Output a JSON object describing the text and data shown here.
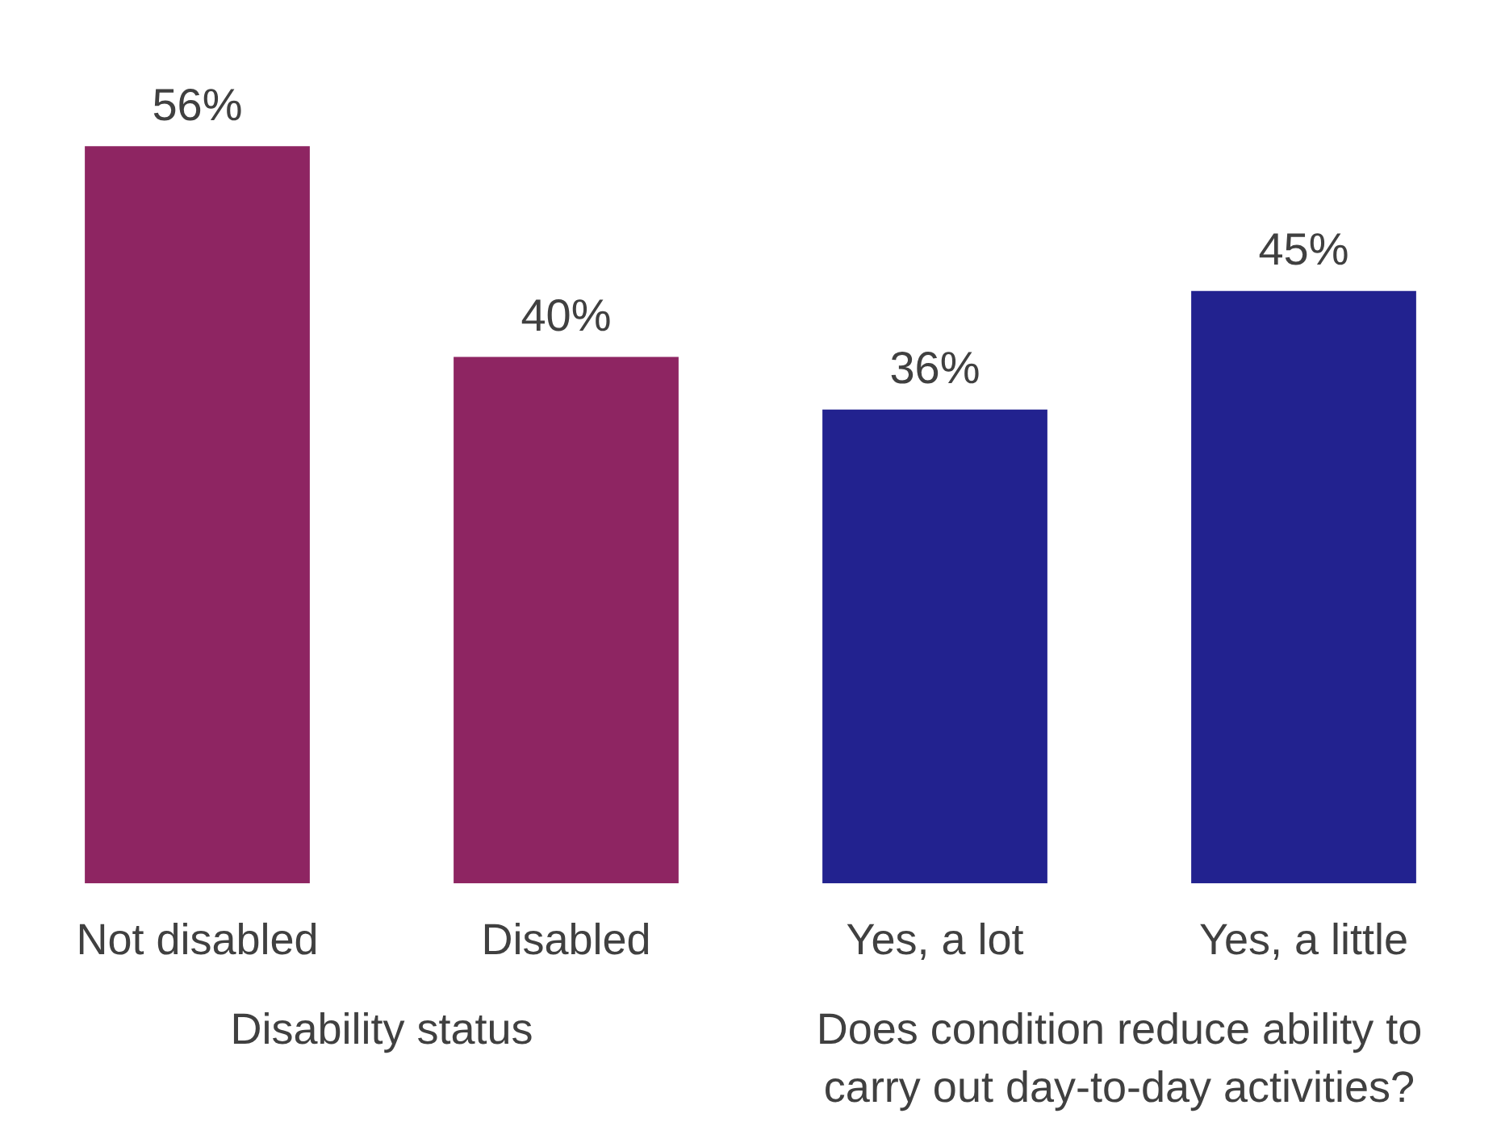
{
  "chart_data": {
    "type": "bar",
    "categories": [
      "Not disabled",
      "Disabled",
      "Yes, a lot",
      "Yes, a little"
    ],
    "values": [
      56,
      40,
      36,
      45
    ],
    "colors": [
      "#8e2562",
      "#8e2562",
      "#22228f",
      "#22228f"
    ],
    "data_labels": true,
    "value_labels": [
      "56%",
      "40%",
      "36%",
      "45%"
    ],
    "tick_labels": "x",
    "grid": false,
    "legend": false,
    "annotations": [
      "Disability status",
      "Does condition reduce ability to carry out day-to-day activities?"
    ]
  }
}
